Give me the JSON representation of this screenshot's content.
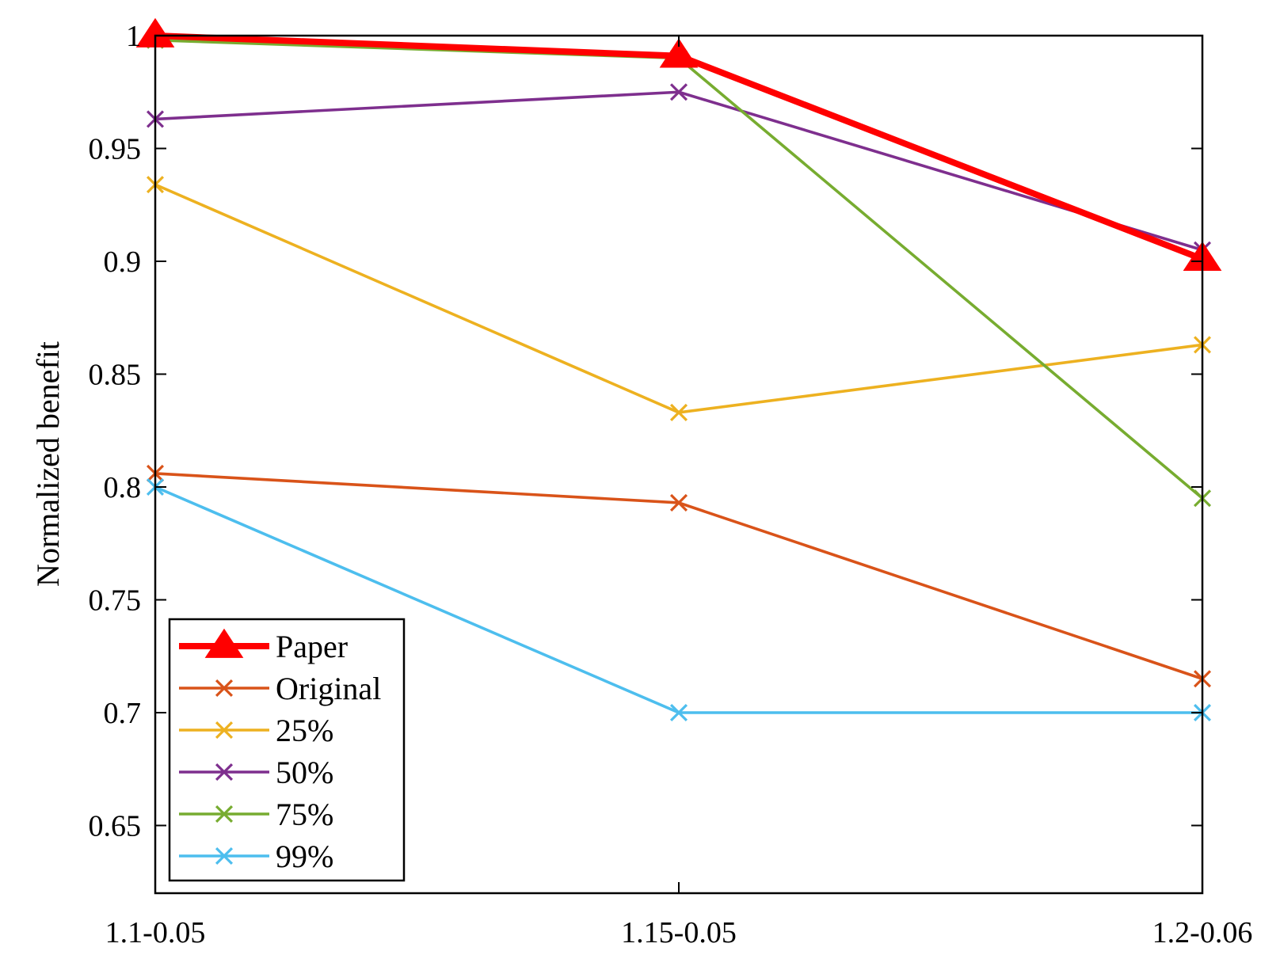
{
  "chart_data": {
    "type": "line",
    "title": "",
    "xlabel": "",
    "ylabel": "Normalized benefit",
    "categories": [
      "1.1-0.05",
      "1.15-0.05",
      "1.2-0.06"
    ],
    "ylim": [
      0.62,
      1.0
    ],
    "yticks": [
      0.65,
      0.7,
      0.75,
      0.8,
      0.85,
      0.9,
      0.95,
      1
    ],
    "ytick_labels": [
      "0.65",
      "0.7",
      "0.75",
      "0.8",
      "0.85",
      "0.9",
      "0.95",
      "1"
    ],
    "grid": false,
    "legend_position": "bottom-left",
    "series": [
      {
        "name": "Paper",
        "values": [
          1.0,
          0.991,
          0.901
        ],
        "color": "#ff0000",
        "marker": "triangle",
        "bold": true
      },
      {
        "name": "Original",
        "values": [
          0.806,
          0.793,
          0.715
        ],
        "color": "#d95319",
        "marker": "x"
      },
      {
        "name": "25%",
        "values": [
          0.934,
          0.833,
          0.863
        ],
        "color": "#edb120",
        "marker": "x"
      },
      {
        "name": "50%",
        "values": [
          0.963,
          0.975,
          0.905
        ],
        "color": "#7e2f8e",
        "marker": "x"
      },
      {
        "name": "75%",
        "values": [
          0.998,
          0.99,
          0.795
        ],
        "color": "#77ac30",
        "marker": "x"
      },
      {
        "name": "99%",
        "values": [
          0.8,
          0.7,
          0.7
        ],
        "color": "#4dbeee",
        "marker": "x"
      }
    ]
  }
}
